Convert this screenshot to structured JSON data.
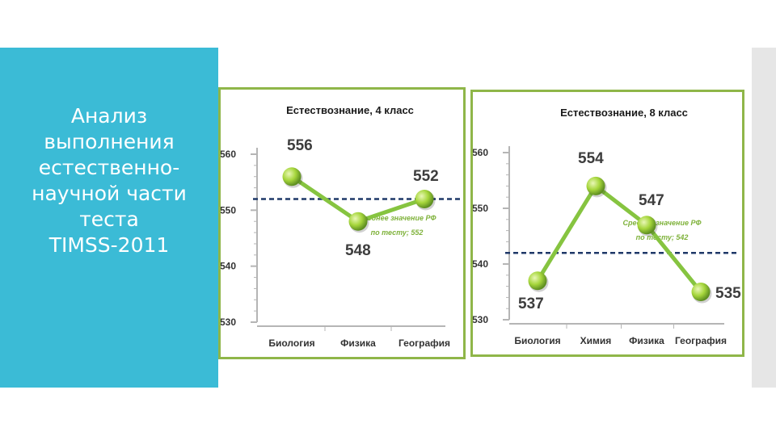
{
  "slide": {
    "title": "Анализ\nвыполнения\nестественно-\nнаучной части\nтеста\nTIMSS-2011"
  },
  "colors": {
    "panel": "#3bbbd6",
    "line": "#86c440",
    "marker": "#a6d63c",
    "average_line": "#1f3868",
    "frame": "#8fb649"
  },
  "chart_data": [
    {
      "type": "line",
      "title": "Естествознание, 4 класс",
      "categories": [
        "Биология",
        "Физика",
        "География"
      ],
      "values": [
        556,
        548,
        552
      ],
      "yticks": [
        "560",
        "550",
        "540",
        "530"
      ],
      "ylim": [
        530,
        560
      ],
      "average_value": 552,
      "average_label_line1": "Среднее значение РФ",
      "average_label_line2": "по тесту; 552",
      "grid": false,
      "legend": "none"
    },
    {
      "type": "line",
      "title": "Естествознание, 8 класс",
      "categories": [
        "Биология",
        "Химия",
        "Физика",
        "География"
      ],
      "values": [
        537,
        554,
        547,
        535
      ],
      "yticks": [
        "560",
        "550",
        "540",
        "530"
      ],
      "ylim": [
        530,
        560
      ],
      "average_value": 542,
      "average_label_line1": "Среднее значение РФ",
      "average_label_line2": "по тесту; 542",
      "grid": false,
      "legend": "none"
    }
  ]
}
